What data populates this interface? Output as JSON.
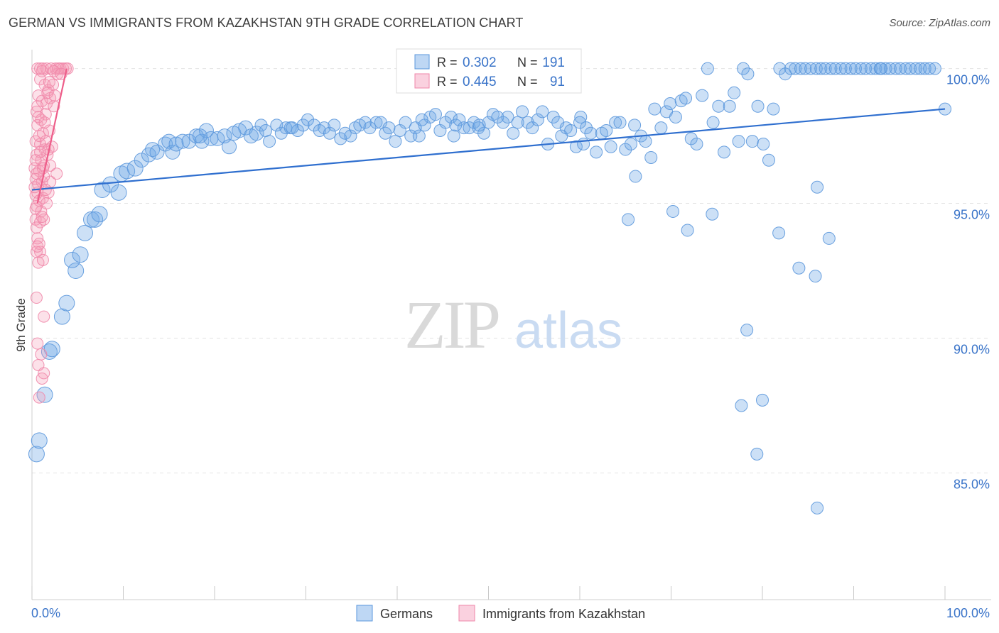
{
  "title": "GERMAN VS IMMIGRANTS FROM KAZAKHSTAN 9TH GRADE CORRELATION CHART",
  "source": "Source: ZipAtlas.com",
  "watermark": {
    "zip": "ZIP",
    "atlas": "atlas"
  },
  "colors": {
    "blue": "#6ea7e6",
    "blue_line": "#2f6fcf",
    "pink": "#f49ab7",
    "pink_line": "#ee5e8a",
    "axis_text": "#3a74c9",
    "grid": "#e3e3e3"
  },
  "chart_data": {
    "type": "scatter",
    "title": "GERMAN VS IMMIGRANTS FROM KAZAKHSTAN 9TH GRADE CORRELATION CHART",
    "ylabel": "9th Grade",
    "xlabel": "",
    "xlim": [
      0,
      100
    ],
    "ylim": [
      80.3,
      100.7
    ],
    "x_tick_labels": [
      "0.0%",
      "100.0%"
    ],
    "y_ticks": [
      {
        "value": 85,
        "label": "85.0%"
      },
      {
        "value": 90,
        "label": "90.0%"
      },
      {
        "value": 95,
        "label": "95.0%"
      },
      {
        "value": 100,
        "label": "100.0%"
      }
    ],
    "legend_stats": [
      {
        "r_label": "R = ",
        "r_value": "0.302",
        "n_label": "N = ",
        "n_value": "191"
      },
      {
        "r_label": "R = ",
        "r_value": "0.445",
        "n_label": "N = ",
        "n_value": "91"
      }
    ],
    "series": [
      {
        "name": "Germans",
        "color": "#6ea7e6",
        "trend": {
          "x": [
            0,
            100
          ],
          "y": [
            95.5,
            98.5
          ]
        },
        "points": [
          [
            0.5,
            85.7
          ],
          [
            0.8,
            86.2
          ],
          [
            1.4,
            87.9
          ],
          [
            1.9,
            89.5
          ],
          [
            2.2,
            89.6
          ],
          [
            3.3,
            90.8
          ],
          [
            3.8,
            91.3
          ],
          [
            4.8,
            92.5
          ],
          [
            4.4,
            92.9
          ],
          [
            5.3,
            93.1
          ],
          [
            5.8,
            93.9
          ],
          [
            6.5,
            94.4
          ],
          [
            6.9,
            94.4
          ],
          [
            7.4,
            94.6
          ],
          [
            7.7,
            95.5
          ],
          [
            8.6,
            95.7
          ],
          [
            9.5,
            95.4
          ],
          [
            9.8,
            96.1
          ],
          [
            10.4,
            96.2
          ],
          [
            11.3,
            96.3
          ],
          [
            12.0,
            96.6
          ],
          [
            12.8,
            96.8
          ],
          [
            13.2,
            97.0
          ],
          [
            13.7,
            96.9
          ],
          [
            14.6,
            97.2
          ],
          [
            15.0,
            97.3
          ],
          [
            15.4,
            96.9
          ],
          [
            15.8,
            97.2
          ],
          [
            16.5,
            97.3
          ],
          [
            17.2,
            97.3
          ],
          [
            18.0,
            97.5
          ],
          [
            18.6,
            97.3
          ],
          [
            19.1,
            97.7
          ],
          [
            19.6,
            97.4
          ],
          [
            20.3,
            97.4
          ],
          [
            21.1,
            97.5
          ],
          [
            21.6,
            97.1
          ],
          [
            22.1,
            97.6
          ],
          [
            22.7,
            97.7
          ],
          [
            23.4,
            97.8
          ],
          [
            24.0,
            97.5
          ],
          [
            24.6,
            97.6
          ],
          [
            25.1,
            97.9
          ],
          [
            25.6,
            97.7
          ],
          [
            26.0,
            97.3
          ],
          [
            26.8,
            97.9
          ],
          [
            27.3,
            97.6
          ],
          [
            27.8,
            97.8
          ],
          [
            28.3,
            97.8
          ],
          [
            29.1,
            97.7
          ],
          [
            29.7,
            97.9
          ],
          [
            30.2,
            98.1
          ],
          [
            30.9,
            97.9
          ],
          [
            31.5,
            97.7
          ],
          [
            32.0,
            97.8
          ],
          [
            32.6,
            97.6
          ],
          [
            33.1,
            97.9
          ],
          [
            33.8,
            97.4
          ],
          [
            34.3,
            97.6
          ],
          [
            34.9,
            97.5
          ],
          [
            35.4,
            97.8
          ],
          [
            35.9,
            97.9
          ],
          [
            36.5,
            98.0
          ],
          [
            37.0,
            97.8
          ],
          [
            37.7,
            98.0
          ],
          [
            38.2,
            98.0
          ],
          [
            38.7,
            97.6
          ],
          [
            39.1,
            97.8
          ],
          [
            39.8,
            97.3
          ],
          [
            40.3,
            97.7
          ],
          [
            40.9,
            98.0
          ],
          [
            41.5,
            97.5
          ],
          [
            42.0,
            97.8
          ],
          [
            42.4,
            97.5
          ],
          [
            43.0,
            97.9
          ],
          [
            43.6,
            98.2
          ],
          [
            44.2,
            98.3
          ],
          [
            44.7,
            97.7
          ],
          [
            45.3,
            98.0
          ],
          [
            45.9,
            98.2
          ],
          [
            46.4,
            97.9
          ],
          [
            46.8,
            98.1
          ],
          [
            47.3,
            97.8
          ],
          [
            47.9,
            97.8
          ],
          [
            48.4,
            98.0
          ],
          [
            48.9,
            97.8
          ],
          [
            49.5,
            97.6
          ],
          [
            50.0,
            98.0
          ],
          [
            50.5,
            98.3
          ],
          [
            51.0,
            98.2
          ],
          [
            51.6,
            98.0
          ],
          [
            52.1,
            98.2
          ],
          [
            52.7,
            97.6
          ],
          [
            53.2,
            98.0
          ],
          [
            53.7,
            98.4
          ],
          [
            54.3,
            98.0
          ],
          [
            54.8,
            97.8
          ],
          [
            55.4,
            98.1
          ],
          [
            55.9,
            98.4
          ],
          [
            56.5,
            97.2
          ],
          [
            57.1,
            98.2
          ],
          [
            57.6,
            98.0
          ],
          [
            58.0,
            97.5
          ],
          [
            58.5,
            97.8
          ],
          [
            59.0,
            97.7
          ],
          [
            59.6,
            97.1
          ],
          [
            60.1,
            98.2
          ],
          [
            60.7,
            97.8
          ],
          [
            61.2,
            97.6
          ],
          [
            61.8,
            96.9
          ],
          [
            62.4,
            97.6
          ],
          [
            62.9,
            97.7
          ],
          [
            63.4,
            97.1
          ],
          [
            63.9,
            98.0
          ],
          [
            64.4,
            98.0
          ],
          [
            65.0,
            97.0
          ],
          [
            65.6,
            97.2
          ],
          [
            66.1,
            96.0
          ],
          [
            66.7,
            97.5
          ],
          [
            67.2,
            97.3
          ],
          [
            67.8,
            96.7
          ],
          [
            68.2,
            98.5
          ],
          [
            68.9,
            97.8
          ],
          [
            69.5,
            98.4
          ],
          [
            69.9,
            98.7
          ],
          [
            70.5,
            98.2
          ],
          [
            71.1,
            98.8
          ],
          [
            71.6,
            98.9
          ],
          [
            72.2,
            97.4
          ],
          [
            72.8,
            97.2
          ],
          [
            73.4,
            99.0
          ],
          [
            74.0,
            100.0
          ],
          [
            74.6,
            98.0
          ],
          [
            75.2,
            98.6
          ],
          [
            75.8,
            96.9
          ],
          [
            76.4,
            98.6
          ],
          [
            76.9,
            99.1
          ],
          [
            77.4,
            97.3
          ],
          [
            77.9,
            100.0
          ],
          [
            78.4,
            99.8
          ],
          [
            78.9,
            97.3
          ],
          [
            79.5,
            98.6
          ],
          [
            80.1,
            97.2
          ],
          [
            80.7,
            96.6
          ],
          [
            81.2,
            98.5
          ],
          [
            81.9,
            100.0
          ],
          [
            82.5,
            99.8
          ],
          [
            83.1,
            100.0
          ],
          [
            83.6,
            100.0
          ],
          [
            84.2,
            100.0
          ],
          [
            84.7,
            100.0
          ],
          [
            85.3,
            100.0
          ],
          [
            85.9,
            100.0
          ],
          [
            86.4,
            100.0
          ],
          [
            86.9,
            100.0
          ],
          [
            87.5,
            100.0
          ],
          [
            88.0,
            100.0
          ],
          [
            88.6,
            100.0
          ],
          [
            89.1,
            100.0
          ],
          [
            89.7,
            100.0
          ],
          [
            90.2,
            100.0
          ],
          [
            90.8,
            100.0
          ],
          [
            91.3,
            100.0
          ],
          [
            91.9,
            100.0
          ],
          [
            92.4,
            100.0
          ],
          [
            92.9,
            100.0
          ],
          [
            93.5,
            100.0
          ],
          [
            94.0,
            100.0
          ],
          [
            94.6,
            100.0
          ],
          [
            95.1,
            100.0
          ],
          [
            95.7,
            100.0
          ],
          [
            96.2,
            100.0
          ],
          [
            96.8,
            100.0
          ],
          [
            97.3,
            100.0
          ],
          [
            97.8,
            100.0
          ],
          [
            98.3,
            100.0
          ],
          [
            98.9,
            100.0
          ],
          [
            100.0,
            98.5
          ],
          [
            65.3,
            94.4
          ],
          [
            70.2,
            94.7
          ],
          [
            71.8,
            94.0
          ],
          [
            74.5,
            94.6
          ],
          [
            81.8,
            93.9
          ],
          [
            84.0,
            92.6
          ],
          [
            86.0,
            95.6
          ],
          [
            87.3,
            93.7
          ],
          [
            85.8,
            92.3
          ],
          [
            78.3,
            90.3
          ],
          [
            77.7,
            87.5
          ],
          [
            80.0,
            87.7
          ],
          [
            79.4,
            85.7
          ],
          [
            86.0,
            83.7
          ],
          [
            60.4,
            97.2
          ],
          [
            60.0,
            98.0
          ],
          [
            28.5,
            97.8
          ],
          [
            18.4,
            97.5
          ],
          [
            42.7,
            98.1
          ],
          [
            46.2,
            97.5
          ],
          [
            49.0,
            97.9
          ],
          [
            66.0,
            97.9
          ],
          [
            93.0,
            100.0
          ]
        ]
      },
      {
        "name": "Immigrants from Kazakhstan",
        "color": "#f49ab7",
        "trend": {
          "x": [
            0.6,
            3.8
          ],
          "y": [
            95.0,
            100.0
          ]
        },
        "points": [
          [
            0.6,
            100.0
          ],
          [
            1.2,
            100.0
          ],
          [
            1.6,
            100.0
          ],
          [
            2.1,
            100.0
          ],
          [
            2.6,
            100.0
          ],
          [
            2.8,
            99.8
          ],
          [
            3.1,
            100.0
          ],
          [
            3.4,
            100.0
          ],
          [
            3.7,
            100.0
          ],
          [
            3.9,
            100.0
          ],
          [
            0.9,
            99.6
          ],
          [
            1.4,
            99.4
          ],
          [
            1.8,
            99.2
          ],
          [
            2.3,
            99.4
          ],
          [
            0.7,
            99.0
          ],
          [
            1.1,
            98.8
          ],
          [
            1.6,
            98.7
          ],
          [
            2.0,
            98.9
          ],
          [
            0.5,
            98.4
          ],
          [
            1.0,
            98.1
          ],
          [
            1.5,
            98.3
          ],
          [
            0.6,
            97.9
          ],
          [
            1.2,
            97.6
          ],
          [
            1.9,
            97.7
          ],
          [
            0.4,
            97.3
          ],
          [
            0.9,
            97.2
          ],
          [
            1.4,
            97.0
          ],
          [
            2.2,
            97.1
          ],
          [
            0.5,
            96.8
          ],
          [
            1.0,
            96.6
          ],
          [
            1.7,
            96.8
          ],
          [
            0.3,
            96.3
          ],
          [
            0.8,
            96.2
          ],
          [
            1.3,
            96.4
          ],
          [
            2.0,
            96.4
          ],
          [
            2.7,
            96.1
          ],
          [
            0.4,
            95.9
          ],
          [
            1.1,
            95.8
          ],
          [
            2.0,
            95.8
          ],
          [
            0.6,
            95.4
          ],
          [
            1.2,
            95.2
          ],
          [
            1.8,
            95.4
          ],
          [
            0.5,
            94.9
          ],
          [
            1.0,
            94.7
          ],
          [
            0.4,
            94.4
          ],
          [
            0.9,
            94.3
          ],
          [
            1.3,
            94.4
          ],
          [
            0.5,
            94.1
          ],
          [
            0.6,
            93.7
          ],
          [
            0.8,
            93.5
          ],
          [
            0.9,
            93.2
          ],
          [
            0.5,
            93.2
          ],
          [
            0.7,
            92.8
          ],
          [
            0.5,
            91.5
          ],
          [
            1.3,
            90.8
          ],
          [
            0.6,
            89.8
          ],
          [
            1.0,
            89.4
          ],
          [
            0.7,
            89.0
          ],
          [
            1.3,
            88.7
          ],
          [
            1.1,
            88.5
          ],
          [
            0.8,
            87.8
          ],
          [
            0.4,
            95.3
          ],
          [
            0.9,
            96.9
          ],
          [
            1.5,
            97.3
          ],
          [
            2.4,
            98.6
          ],
          [
            1.1,
            99.9
          ],
          [
            1.9,
            99.5
          ],
          [
            2.9,
            100.0
          ],
          [
            0.7,
            98.2
          ],
          [
            1.3,
            96.0
          ],
          [
            0.3,
            95.6
          ],
          [
            0.8,
            95.1
          ],
          [
            1.6,
            95.0
          ],
          [
            0.4,
            94.8
          ],
          [
            1.1,
            94.5
          ],
          [
            0.6,
            93.4
          ],
          [
            1.2,
            92.9
          ],
          [
            2.4,
            99.9
          ],
          [
            3.2,
            99.8
          ],
          [
            0.9,
            100.0
          ],
          [
            1.7,
            99.1
          ],
          [
            2.5,
            99.0
          ],
          [
            0.6,
            98.6
          ],
          [
            1.4,
            98.0
          ],
          [
            0.8,
            97.5
          ],
          [
            1.8,
            97.0
          ],
          [
            0.4,
            96.6
          ],
          [
            1.2,
            96.3
          ],
          [
            0.7,
            95.7
          ],
          [
            1.5,
            95.5
          ],
          [
            0.5,
            96.1
          ]
        ]
      }
    ],
    "legend": [
      {
        "label": "Germans",
        "color": "#6ea7e6"
      },
      {
        "label": "Immigrants from Kazakhstan",
        "color": "#f49ab7"
      }
    ]
  }
}
